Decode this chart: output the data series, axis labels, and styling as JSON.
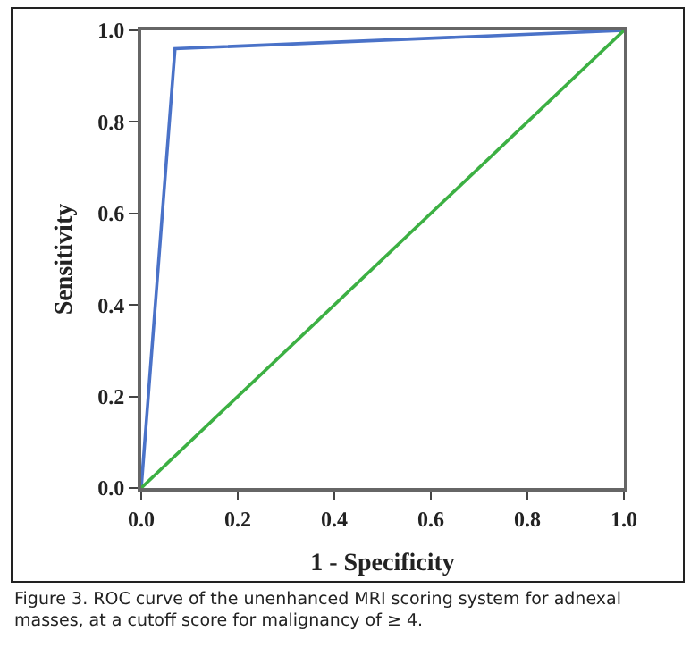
{
  "chart_data": {
    "type": "line",
    "xlabel": "1 - Specificity",
    "ylabel": "Sensitivity",
    "series": [
      {
        "color": "#4a72c8",
        "x": [
          0,
          0.07,
          1
        ],
        "values": [
          0,
          0.96,
          1
        ]
      },
      {
        "color": "#3cb043",
        "x": [
          0,
          1
        ],
        "values": [
          0,
          1
        ]
      }
    ],
    "xlim": [
      0,
      1
    ],
    "ylim": [
      0,
      1
    ],
    "xticks": [
      {
        "value": 0,
        "label": "0.0"
      },
      0.2,
      0.4,
      0.6,
      0.8,
      {
        "value": 1,
        "label": "1.0"
      }
    ],
    "yticks": [
      {
        "value": 0,
        "label": "0.0"
      },
      0.2,
      0.4,
      0.6,
      0.8,
      {
        "value": 1,
        "label": "1.0"
      }
    ],
    "grid": false,
    "marker": "none",
    "line_style": "solid",
    "annotations": [
      "Figure 3. ROC curve of the unenhanced MRI scoring system for adnexal masses, at a cutoff score for malignancy of ≥ 4."
    ]
  }
}
